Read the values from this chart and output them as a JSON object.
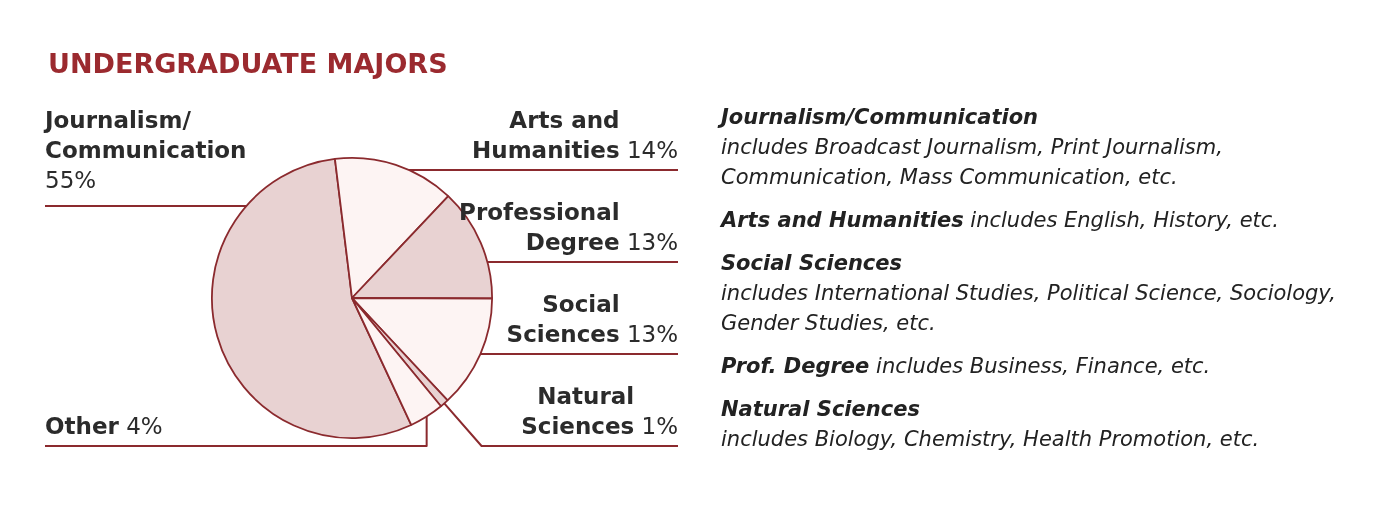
{
  "chart_data": {
    "type": "pie",
    "title": "UNDERGRADUATE MAJORS",
    "categories": [
      "Journalism/\nCommunication",
      "Arts and\nHumanities",
      "Professional\nDegree",
      "Social\nSciences",
      "Natural\nSciences",
      "Other"
    ],
    "values": [
      55,
      14,
      13,
      13,
      1,
      4
    ],
    "value_labels": [
      "55%",
      "14%",
      "13%",
      "13%",
      "1%",
      "4%"
    ],
    "colors": [
      "#e8d2d2",
      "#fdf4f3",
      "#e8d2d2",
      "#fdf4f3",
      "#e8d2d2",
      "#fdf4f3"
    ],
    "annotations": [
      "Journalism/Communication",
      "includes Broadcast Journalism, Print Journalism, Communication, Mass Communication, etc.",
      "Arts and Humanities",
      "includes English, History, etc.",
      "Social Sciences",
      "includes International Studies, Political Science, Sociology, Gender Studies, etc.",
      "Prof. Degree",
      "includes Business, Finance, etc.",
      "Natural Sciences",
      "includes Biology, Chemistry, Health Promotion, etc."
    ]
  }
}
